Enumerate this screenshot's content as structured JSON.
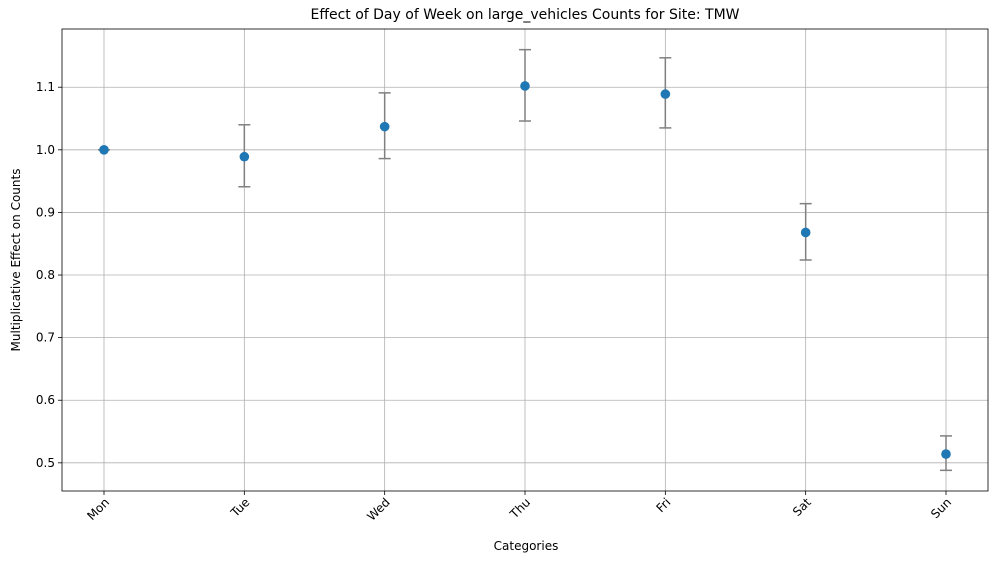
{
  "chart_data": {
    "type": "scatter",
    "title": "Effect of Day of Week on large_vehicles Counts for Site: TMW",
    "xlabel": "Categories",
    "ylabel": "Multiplicative Effect on Counts",
    "categories": [
      "Mon",
      "Tue",
      "Wed",
      "Thu",
      "Fri",
      "Sat",
      "Sun"
    ],
    "values": [
      1.0,
      0.989,
      1.037,
      1.102,
      1.089,
      0.868,
      0.514
    ],
    "error_low": [
      1.0,
      0.941,
      0.986,
      1.046,
      1.035,
      0.824,
      0.488
    ],
    "error_high": [
      1.0,
      1.04,
      1.091,
      1.16,
      1.147,
      0.914,
      0.543
    ],
    "ylim": [
      0.455,
      1.193
    ],
    "yticks": [
      0.5,
      0.6,
      0.7,
      0.8,
      0.9,
      1.0,
      1.1
    ],
    "ytick_labels": [
      "0.5",
      "0.6",
      "0.7",
      "0.8",
      "0.9",
      "1.0",
      "1.1"
    ],
    "grid": true,
    "legend": "none",
    "colors": {
      "marker": "#1f77b4",
      "errorbar": "#808080",
      "grid": "#b0b0b0"
    }
  }
}
